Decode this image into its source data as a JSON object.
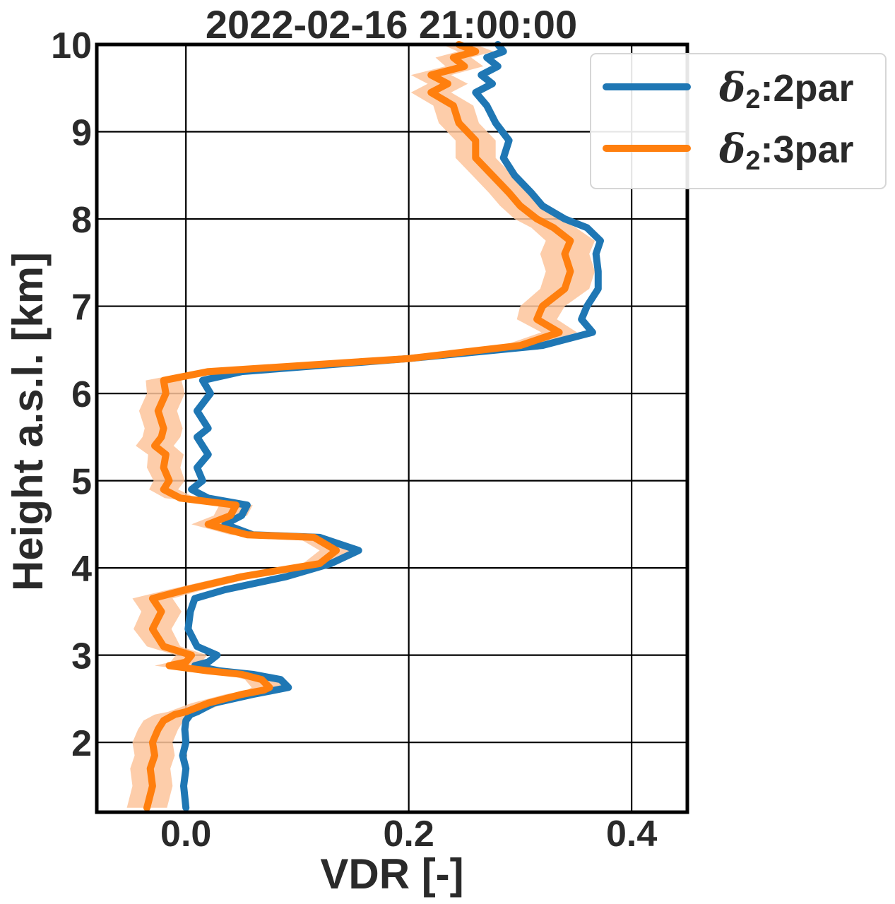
{
  "chart_data": {
    "type": "line",
    "title": "2022-02-16 21:00:00",
    "xlabel": "VDR [-]",
    "ylabel": "Height a.s.l. [km]",
    "xlim": [
      -0.08,
      0.45
    ],
    "ylim": [
      1.2,
      10.0
    ],
    "xticks": [
      0.0,
      0.2,
      0.4
    ],
    "xtick_labels": [
      "0.0",
      "0.2",
      "0.4"
    ],
    "yticks": [
      2,
      3,
      4,
      5,
      6,
      7,
      8,
      9,
      10
    ],
    "ytick_labels": [
      "2",
      "3",
      "4",
      "5",
      "6",
      "7",
      "8",
      "9",
      "10"
    ],
    "grid": true,
    "legend_position": "top-right",
    "series": [
      {
        "name_symbol": "δ",
        "name_sub": "2",
        "name_suffix": ":2par",
        "color": "#1f77b4",
        "x": [
          0.0,
          -0.002,
          0.0,
          -0.003,
          0.0,
          -0.001,
          0.0,
          0.004,
          0.01,
          0.025,
          0.06,
          0.08,
          0.092,
          0.085,
          0.06,
          0.03,
          0.008,
          0.02,
          0.028,
          0.01,
          0.002,
          0.004,
          0.008,
          0.035,
          0.09,
          0.13,
          0.155,
          0.12,
          0.06,
          0.035,
          0.05,
          0.055,
          0.02,
          0.005,
          0.015,
          0.01,
          0.02,
          0.015,
          0.01,
          0.02,
          0.01,
          0.022,
          0.015,
          0.05,
          0.2,
          0.32,
          0.365,
          0.355,
          0.36,
          0.37,
          0.37,
          0.368,
          0.372,
          0.36,
          0.34,
          0.32,
          0.31,
          0.295,
          0.285,
          0.29,
          0.278,
          0.27,
          0.26,
          0.275,
          0.265,
          0.28,
          0.27,
          0.285,
          0.28
        ],
        "y": [
          1.25,
          1.5,
          1.7,
          1.85,
          2.0,
          2.15,
          2.25,
          2.32,
          2.35,
          2.45,
          2.55,
          2.6,
          2.63,
          2.72,
          2.78,
          2.82,
          2.88,
          2.92,
          3.0,
          3.1,
          3.3,
          3.5,
          3.65,
          3.75,
          3.9,
          4.05,
          4.2,
          4.35,
          4.38,
          4.5,
          4.6,
          4.72,
          4.8,
          4.9,
          5.0,
          5.15,
          5.3,
          5.4,
          5.5,
          5.6,
          5.8,
          6.0,
          6.15,
          6.25,
          6.4,
          6.55,
          6.7,
          6.85,
          7.0,
          7.2,
          7.4,
          7.6,
          7.75,
          7.9,
          8.0,
          8.15,
          8.3,
          8.5,
          8.7,
          8.9,
          9.1,
          9.3,
          9.45,
          9.55,
          9.65,
          9.75,
          9.85,
          9.92,
          10.0
        ]
      },
      {
        "name_symbol": "δ",
        "name_sub": "2",
        "name_suffix": ":3par",
        "color": "#ff7f0e",
        "band_color": "#fdc49b",
        "band_halfwidth": [
          0.018,
          0.018,
          0.018,
          0.018,
          0.018,
          0.018,
          0.018,
          0.018,
          0.016,
          0.015,
          0.015,
          0.015,
          0.016,
          0.015,
          0.014,
          0.013,
          0.013,
          0.014,
          0.014,
          0.015,
          0.017,
          0.018,
          0.018,
          0.016,
          0.015,
          0.015,
          0.015,
          0.015,
          0.015,
          0.015,
          0.015,
          0.015,
          0.014,
          0.013,
          0.014,
          0.015,
          0.016,
          0.017,
          0.017,
          0.017,
          0.017,
          0.017,
          0.016,
          0.015,
          0.015,
          0.015,
          0.016,
          0.018,
          0.02,
          0.022,
          0.022,
          0.022,
          0.022,
          0.02,
          0.02,
          0.018,
          0.018,
          0.018,
          0.018,
          0.018,
          0.018,
          0.018,
          0.018,
          0.018,
          0.018,
          0.017,
          0.016,
          0.016,
          0.015
        ],
        "x": [
          -0.035,
          -0.03,
          -0.032,
          -0.028,
          -0.03,
          -0.025,
          -0.02,
          -0.01,
          0.0,
          0.02,
          0.05,
          0.07,
          0.075,
          0.068,
          0.05,
          0.02,
          -0.015,
          0.0,
          0.005,
          -0.02,
          -0.03,
          -0.022,
          -0.03,
          0.0,
          0.05,
          0.12,
          0.135,
          0.115,
          0.055,
          0.02,
          0.04,
          0.045,
          -0.005,
          -0.02,
          -0.015,
          -0.02,
          -0.018,
          -0.028,
          -0.022,
          -0.02,
          -0.025,
          -0.018,
          -0.02,
          0.02,
          0.2,
          0.3,
          0.335,
          0.315,
          0.32,
          0.34,
          0.345,
          0.34,
          0.345,
          0.33,
          0.315,
          0.3,
          0.29,
          0.275,
          0.26,
          0.26,
          0.245,
          0.24,
          0.22,
          0.235,
          0.22,
          0.25,
          0.24,
          0.26,
          0.245
        ],
        "y": [
          1.25,
          1.5,
          1.7,
          1.85,
          2.0,
          2.15,
          2.25,
          2.32,
          2.35,
          2.45,
          2.55,
          2.6,
          2.63,
          2.72,
          2.78,
          2.82,
          2.88,
          2.92,
          3.0,
          3.1,
          3.3,
          3.5,
          3.65,
          3.75,
          3.9,
          4.05,
          4.2,
          4.35,
          4.38,
          4.5,
          4.6,
          4.72,
          4.8,
          4.9,
          5.0,
          5.15,
          5.3,
          5.4,
          5.5,
          5.6,
          5.8,
          6.0,
          6.15,
          6.25,
          6.4,
          6.55,
          6.7,
          6.85,
          7.0,
          7.2,
          7.4,
          7.6,
          7.75,
          7.9,
          8.0,
          8.15,
          8.3,
          8.5,
          8.7,
          8.9,
          9.1,
          9.3,
          9.45,
          9.55,
          9.65,
          9.75,
          9.85,
          9.92,
          10.0
        ]
      }
    ]
  }
}
